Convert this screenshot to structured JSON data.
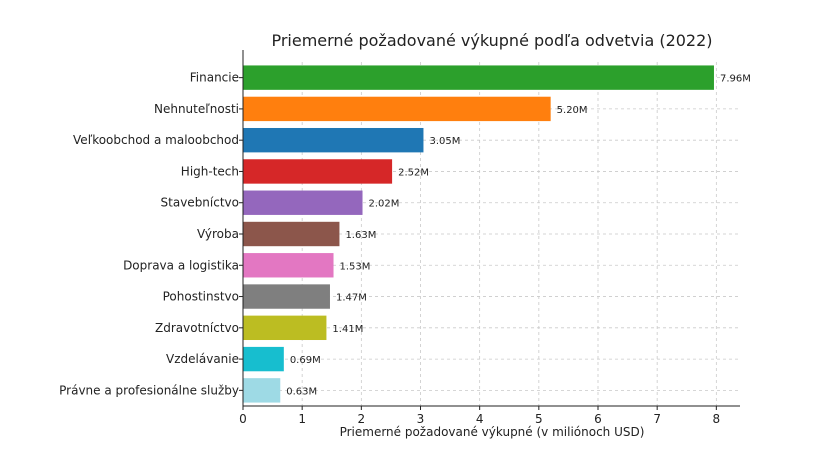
{
  "chart_data": {
    "type": "bar",
    "orientation": "horizontal",
    "title": "Priemerné požadované výkupné podľa odvetvia (2022)",
    "xlabel": "Priemerné požadované výkupné (v miliónoch USD)",
    "ylabel": "",
    "xlim": [
      0,
      8.4
    ],
    "xticks": [
      0,
      1,
      2,
      3,
      4,
      5,
      6,
      7,
      8
    ],
    "grid": true,
    "categories": [
      "Financie",
      "Nehnuteľnosti",
      "Veľkoobchod a maloobchod",
      "High-tech",
      "Stavebníctvo",
      "Výroba",
      "Doprava a logistika",
      "Pohostinstvo",
      "Zdravotníctvo",
      "Vzdelávanie",
      "Právne a profesionálne služby"
    ],
    "values": [
      7.96,
      5.2,
      3.05,
      2.52,
      2.02,
      1.63,
      1.53,
      1.47,
      1.41,
      0.69,
      0.63
    ],
    "value_labels": [
      "7.96M",
      "5.20M",
      "3.05M",
      "2.52M",
      "2.02M",
      "1.63M",
      "1.53M",
      "1.47M",
      "1.41M",
      "0.69M",
      "0.63M"
    ],
    "colors": [
      "#2ca02c",
      "#ff7f0e",
      "#1f77b4",
      "#d62728",
      "#9467bd",
      "#8c564b",
      "#e377c2",
      "#7f7f7f",
      "#bcbd22",
      "#17becf",
      "#9edae5"
    ]
  }
}
